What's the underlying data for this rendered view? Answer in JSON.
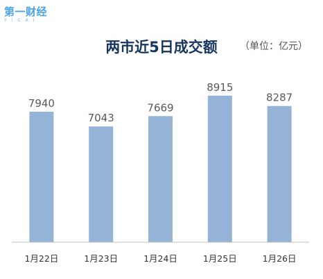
{
  "watermark": {
    "main": "第一财经",
    "sub": "YICAI"
  },
  "chart_data": {
    "type": "bar",
    "title": "两市近5日成交额",
    "unit_label": "（单位：亿元）",
    "categories": [
      "1月22日",
      "1月23日",
      "1月24日",
      "1月25日",
      "1月26日"
    ],
    "values": [
      7940,
      7043,
      7669,
      8915,
      8287
    ],
    "ylim": [
      0,
      10300
    ],
    "grid": false,
    "bar_color": "#95b3d7",
    "label_color": "#595959"
  }
}
